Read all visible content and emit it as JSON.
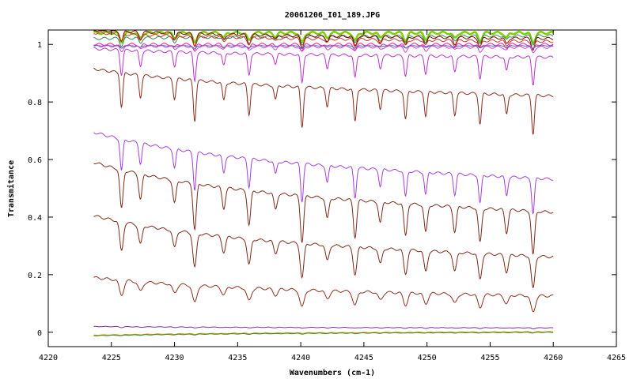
{
  "chart_data": {
    "type": "line",
    "title": "20061206_I01_189.JPG",
    "xlabel": "Wavenumbers (cm-1)",
    "ylabel": "Transmitance",
    "xlim": [
      4220,
      4265
    ],
    "ylim": [
      -0.05,
      1.05
    ],
    "x_ticks": [
      "4220",
      "4225",
      "4230",
      "4235",
      "4240",
      "4245",
      "4250",
      "4255",
      "4260",
      "4265"
    ],
    "y_ticks": [
      "0",
      "0.2",
      "0.4",
      "0.6",
      "0.8",
      "1"
    ],
    "x_tick_values": [
      4220,
      4225,
      4230,
      4235,
      4240,
      4245,
      4250,
      4255,
      4260,
      4265
    ],
    "y_tick_values": [
      0,
      0.2,
      0.4,
      0.6,
      0.8,
      1.0
    ],
    "x_range_data": [
      4223.6,
      4260
    ],
    "absorption_lines": [
      4225.8,
      4227.3,
      4230.0,
      4231.6,
      4233.9,
      4235.9,
      4238.0,
      4240.1,
      4242.1,
      4244.3,
      4246.3,
      4248.3,
      4249.9,
      4252.2,
      4254.2,
      4256.3,
      4258.4
    ],
    "legend": "none",
    "grid": false,
    "series": [
      {
        "color": "#7cd000",
        "start": 1.04,
        "end": 1.04,
        "depth": 0.035,
        "width": 0.22
      },
      {
        "color": "#2e8b57",
        "start": 1.02,
        "end": 1.03,
        "depth": 0.03,
        "width": 0.18
      },
      {
        "color": "#8b0000",
        "start": 1.05,
        "end": 1.02,
        "depth": 0.04,
        "width": 0.18
      },
      {
        "color": "#cc3333",
        "start": 1.04,
        "end": 1.01,
        "depth": 0.03,
        "width": 0.18
      },
      {
        "color": "#ff1493",
        "start": 1.0,
        "end": 1.0,
        "depth": 0.02,
        "width": 0.18
      },
      {
        "color": "#4169e1",
        "start": 0.995,
        "end": 0.995,
        "depth": 0.01,
        "width": 0.18
      },
      {
        "color": "#cc44cc",
        "start": 0.995,
        "end": 0.99,
        "depth": 0.02,
        "width": 0.18
      },
      {
        "color": "#bb33cc",
        "start": 0.985,
        "end": 0.955,
        "depth": 0.1,
        "width": 0.15
      },
      {
        "color": "#8b2d1e",
        "start": 0.915,
        "end": 0.82,
        "depth": 0.14,
        "width": 0.15
      },
      {
        "color": "#a040e0",
        "start": 0.695,
        "end": 0.53,
        "depth": 0.13,
        "width": 0.15
      },
      {
        "color": "#7b2a1a",
        "start": 0.59,
        "end": 0.415,
        "depth": 0.16,
        "width": 0.18
      },
      {
        "color": "#7b2a1a",
        "start": 0.405,
        "end": 0.26,
        "depth": 0.12,
        "width": 0.2
      },
      {
        "color": "#8b3020",
        "start": 0.19,
        "end": 0.125,
        "depth": 0.06,
        "width": 0.25
      },
      {
        "color": "#7030a0",
        "start": 0.02,
        "end": 0.015,
        "depth": 0.003,
        "width": 0.2
      },
      {
        "color": "#ff8c00",
        "start": -0.01,
        "end": 0.002,
        "depth": 0.002,
        "width": 0.2
      },
      {
        "color": "#2b8b2b",
        "start": -0.012,
        "end": 0.0,
        "depth": 0.002,
        "width": 0.2
      }
    ]
  }
}
